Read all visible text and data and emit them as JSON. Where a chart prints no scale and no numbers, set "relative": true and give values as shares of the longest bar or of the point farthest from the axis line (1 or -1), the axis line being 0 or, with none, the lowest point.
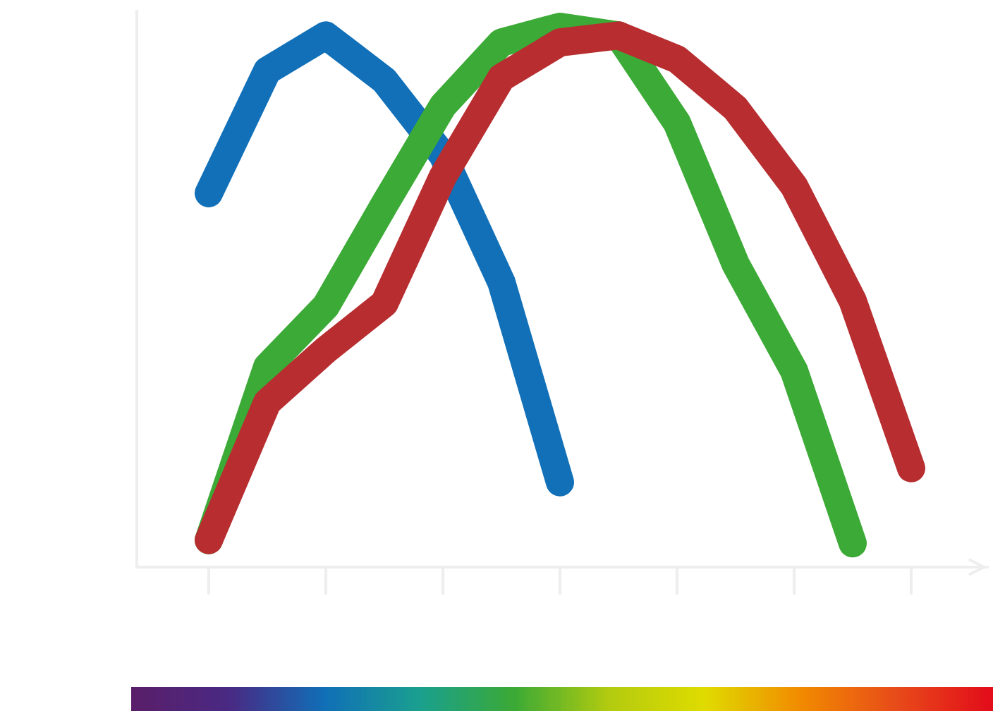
{
  "chart_data": {
    "type": "line",
    "relative": true,
    "categories": [
      null,
      null,
      null,
      null,
      null,
      null,
      null,
      null,
      null,
      null,
      null,
      null,
      null
    ],
    "series": [
      {
        "color": "#1170b8",
        "values": [
          0.692,
          0.919,
          0.984,
          0.901,
          0.762,
          0.527,
          0.157,
          null,
          null,
          null,
          null,
          null,
          null
        ]
      },
      {
        "color": "#3caa36",
        "values": [
          0.05,
          0.371,
          0.483,
          0.671,
          0.854,
          0.971,
          1.0,
          0.984,
          0.822,
          0.561,
          0.363,
          0.044,
          null
        ]
      },
      {
        "color": "#b72d30",
        "values": [
          0.05,
          0.305,
          0.402,
          0.488,
          0.723,
          0.906,
          0.971,
          0.984,
          0.94,
          0.849,
          0.705,
          0.493,
          0.183
        ]
      }
    ],
    "grid": false,
    "legend": false,
    "line_style": "solid"
  }
}
